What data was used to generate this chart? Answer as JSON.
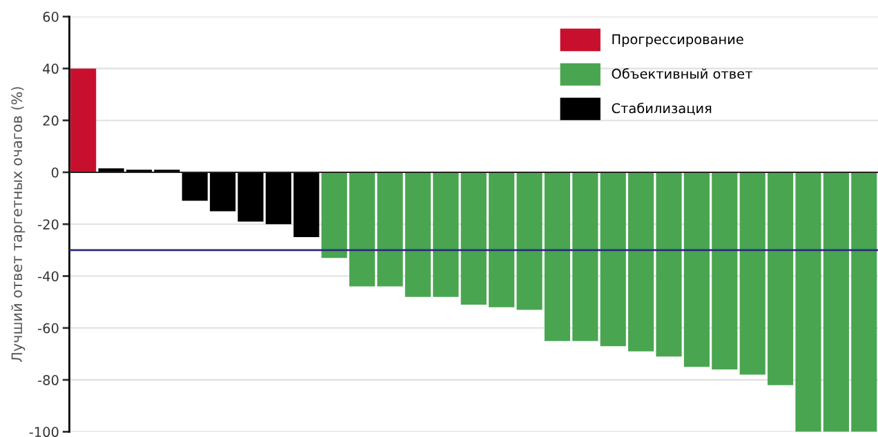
{
  "chart_data": {
    "type": "bar",
    "ylabel": "Лучший ответ таргетных очагов (%)",
    "categories": [
      null,
      null,
      null,
      null,
      null,
      null,
      null,
      null,
      null,
      null,
      null,
      null,
      null,
      null,
      null,
      null,
      null,
      null,
      null,
      null,
      null,
      null,
      null,
      null,
      null,
      null,
      null,
      null,
      null
    ],
    "series": [
      {
        "name": "Прогрессирование",
        "color": "#c8102e",
        "values": [
          40,
          null,
          null,
          null,
          null,
          null,
          null,
          null,
          null,
          null,
          null,
          null,
          null,
          null,
          null,
          null,
          null,
          null,
          null,
          null,
          null,
          null,
          null,
          null,
          null,
          null,
          null,
          null,
          null
        ]
      },
      {
        "name": "Объективный ответ",
        "color": "#4aa551",
        "values": [
          null,
          null,
          null,
          null,
          null,
          null,
          null,
          null,
          null,
          -33,
          -44,
          -44,
          -48,
          -48,
          -51,
          -52,
          -53,
          -65,
          -65,
          -67,
          -69,
          -71,
          -75,
          -76,
          -78,
          -82,
          -100,
          -100,
          -100
        ]
      },
      {
        "name": "Стабилизация",
        "color": "#000000",
        "values": [
          null,
          1.5,
          1,
          1,
          -11,
          -15,
          -19,
          -20,
          -25,
          null,
          null,
          null,
          null,
          null,
          null,
          null,
          null,
          null,
          null,
          null,
          null,
          null,
          null,
          null,
          null,
          null,
          null,
          null,
          null
        ]
      }
    ],
    "ylim": [
      -100,
      60
    ],
    "yticks": [
      -100,
      -80,
      -60,
      -40,
      -20,
      0,
      20,
      40,
      60
    ],
    "ref_lines": [
      {
        "axis": "y",
        "value": -30,
        "color": "#2b2b80"
      }
    ],
    "grid": "y",
    "legend": "top right"
  }
}
